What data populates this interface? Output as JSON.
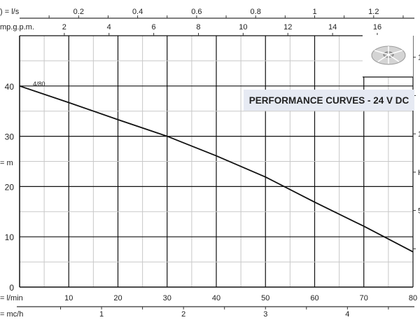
{
  "chart_data": {
    "type": "line",
    "title": "PERFORMANCE CURVES - 24 V DC",
    "series": [
      {
        "name": "4/80",
        "x": [
          0,
          10,
          20,
          30,
          40,
          50,
          60,
          70,
          80
        ],
        "y": [
          40,
          36.7,
          33.3,
          30,
          26.1,
          21.9,
          16.9,
          12.1,
          7.0
        ]
      }
    ],
    "x_axis": {
      "label": "= l/min",
      "range": [
        0,
        80
      ],
      "ticks": [
        10,
        20,
        30,
        40,
        50,
        60,
        70,
        80
      ]
    },
    "y_axis": {
      "label": "= m",
      "range": [
        0,
        50
      ],
      "ticks": [
        0,
        10,
        20,
        30,
        40
      ]
    },
    "secondary_axes": {
      "top_ls": {
        "label": ") = l/s",
        "ticks": [
          "0.2",
          "0.4",
          "0.6",
          "0.8",
          "1",
          "1.2"
        ]
      },
      "top_gpm": {
        "label": "mp.g.p.m.",
        "ticks": [
          "2",
          "4",
          "6",
          "8",
          "10",
          "12",
          "14",
          "16"
        ]
      },
      "bottom_mch": {
        "label": "= mc/h",
        "ticks": [
          "1",
          "2",
          "3",
          "4"
        ]
      },
      "right_partial": {
        "labels": [
          "1",
          "1",
          "H",
          "5"
        ]
      }
    },
    "grid": true,
    "colors": {
      "curve": "#111111",
      "major_grid": "#111111",
      "minor_grid": "#c8c8c8",
      "title_bg": "#e6eaf3"
    }
  }
}
